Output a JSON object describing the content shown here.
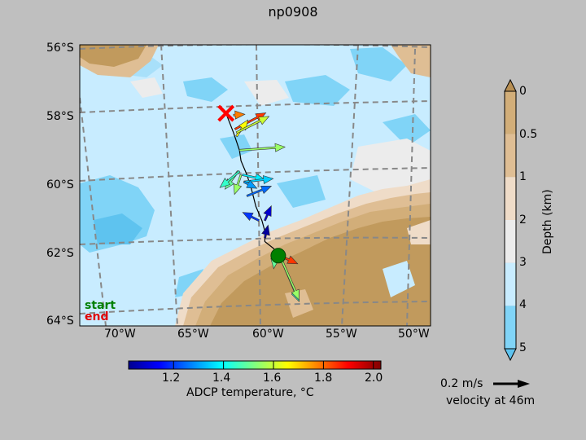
{
  "title": "np0908",
  "map": {
    "lon_ticks": [
      "70°W",
      "65°W",
      "60°W",
      "55°W",
      "50°W"
    ],
    "lat_ticks": [
      "56°S",
      "58°S",
      "60°S",
      "62°S",
      "64°S"
    ],
    "legend_start": "start",
    "legend_end": "end"
  },
  "colorbar_temperature": {
    "label": "ADCP temperature, °C",
    "ticks": [
      "1.2",
      "1.4",
      "1.6",
      "1.8",
      "2.0"
    ],
    "range": [
      1.02,
      2.03
    ],
    "colormap": "jet"
  },
  "colorbar_depth": {
    "label": "Depth (km)",
    "ticks": [
      "0",
      "0.5",
      "1",
      "2",
      "3",
      "4",
      "5"
    ],
    "colors": [
      "#c19a5d",
      "#d2ae79",
      "#dfbe94",
      "#efdcc8",
      "#ececec",
      "#c8ecff",
      "#80d4f7"
    ]
  },
  "velocity_key": {
    "label": "0.2 m/s",
    "caption": "velocity at 46m"
  },
  "chart_data": {
    "type": "vector-map",
    "title": "np0908",
    "lon_range": [
      -73,
      -49.5
    ],
    "lat_range": [
      -64,
      -56
    ],
    "track": [
      [
        -63.2,
        -57.95
      ],
      [
        -62.7,
        -58.5
      ],
      [
        -62.3,
        -59.0
      ],
      [
        -62.2,
        -59.3
      ],
      [
        -61.8,
        -59.7
      ],
      [
        -61.5,
        -60.1
      ],
      [
        -61.2,
        -60.6
      ],
      [
        -60.8,
        -61.0
      ],
      [
        -60.6,
        -61.3
      ],
      [
        -60.6,
        -61.6
      ],
      [
        -60.0,
        -61.8
      ],
      [
        -59.7,
        -62.0
      ]
    ],
    "start": [
      -59.7,
      -62.0
    ],
    "end": [
      -63.2,
      -57.95
    ],
    "vectors": [
      {
        "lon": -62.6,
        "lat": -58.4,
        "u": 0.19,
        "v": 0.1,
        "temp": 1.85
      },
      {
        "lon": -62.5,
        "lat": -58.6,
        "u": 0.07,
        "v": 0.1,
        "temp": 1.65
      },
      {
        "lon": -62.5,
        "lat": -58.5,
        "u": 0.2,
        "v": 0.1,
        "temp": 1.6
      },
      {
        "lon": -62.7,
        "lat": -58.0,
        "u": 0.07,
        "v": 0.005,
        "temp": 1.78
      },
      {
        "lon": -62.3,
        "lat": -59.0,
        "u": 0.28,
        "v": 0.02,
        "temp": 1.55
      },
      {
        "lon": -62.4,
        "lat": -59.6,
        "u": -0.08,
        "v": -0.11,
        "temp": 1.5
      },
      {
        "lon": -62.3,
        "lat": -59.6,
        "u": -0.12,
        "v": -0.1,
        "temp": 1.45
      },
      {
        "lon": -62.2,
        "lat": -59.7,
        "u": -0.04,
        "v": -0.12,
        "temp": 1.55
      },
      {
        "lon": -62.1,
        "lat": -59.7,
        "u": 0.14,
        "v": -0.03,
        "temp": 1.38
      },
      {
        "lon": -62.0,
        "lat": -59.9,
        "u": 0.18,
        "v": 0.02,
        "temp": 1.35
      },
      {
        "lon": -62.0,
        "lat": -59.9,
        "u": 0.08,
        "v": -0.04,
        "temp": 1.3
      },
      {
        "lon": -61.8,
        "lat": -60.3,
        "u": 0.15,
        "v": 0.06,
        "temp": 1.25
      },
      {
        "lon": -61.0,
        "lat": -61.0,
        "u": -0.1,
        "v": 0.05,
        "temp": 1.2
      },
      {
        "lon": -60.6,
        "lat": -61.0,
        "u": 0.04,
        "v": 0.09,
        "temp": 1.1
      },
      {
        "lon": -60.6,
        "lat": -61.5,
        "u": 0.02,
        "v": 0.08,
        "temp": 1.05
      },
      {
        "lon": -59.9,
        "lat": -62.0,
        "u": -0.01,
        "v": -0.08,
        "temp": 1.5
      },
      {
        "lon": -59.6,
        "lat": -62.0,
        "u": 0.11,
        "v": -0.05,
        "temp": 1.85
      },
      {
        "lon": -59.5,
        "lat": -62.1,
        "u": 0.11,
        "v": -0.26,
        "temp": 1.45
      },
      {
        "lon": -59.5,
        "lat": -62.1,
        "u": 0.11,
        "v": -0.25,
        "temp": 1.55
      }
    ],
    "velocity_depth_m": 46,
    "reference_speed_ms": 0.2
  }
}
